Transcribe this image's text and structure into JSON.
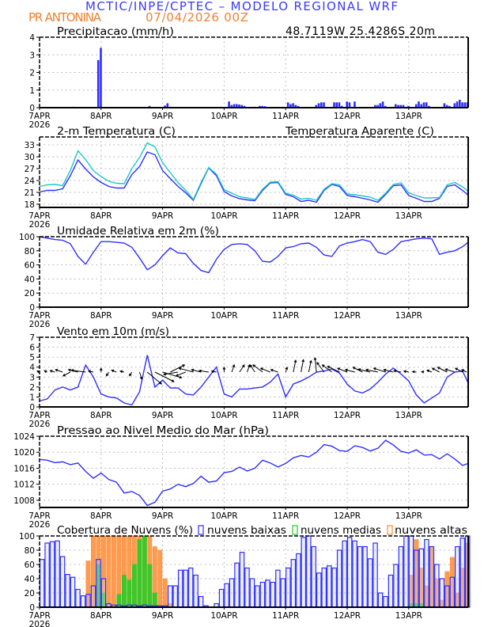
{
  "header": {
    "title": "MCTIC/INPE/CPTEC – MODELO REGIONAL WRF",
    "location": "PR ANTONINA",
    "run": "07/04/2026 00Z",
    "coords": "48.7119W 25.4286S 20m"
  },
  "colors": {
    "blue": "#2f2fff",
    "cyan": "#1cc8c8",
    "orange": "#ff8a30",
    "green": "#22cc22",
    "text_blue": "#3a3aff",
    "text_orange": "#f08030"
  },
  "x_axis": {
    "labels": [
      "7APR",
      "8APR",
      "9APR",
      "10APR",
      "11APR",
      "12APR",
      "13APR"
    ],
    "year": "2026",
    "hours_step_note_free": true
  },
  "chart_data": [
    {
      "type": "bar",
      "id": "precip",
      "title": "Precipitacao (mm/h)",
      "ylim": [
        0,
        4
      ],
      "yticks": [
        0,
        1,
        2,
        3,
        4
      ],
      "grid": true,
      "x_unit": "hours from 7APR 00Z",
      "points": [
        [
          23,
          2.7
        ],
        [
          24,
          3.4
        ],
        [
          13,
          0.05
        ],
        [
          21,
          0.03
        ],
        [
          43,
          0.1
        ],
        [
          49,
          0.12
        ],
        [
          50,
          0.25
        ],
        [
          51,
          0.05
        ],
        [
          74,
          0.35
        ],
        [
          75,
          0.15
        ],
        [
          76,
          0.2
        ],
        [
          77,
          0.2
        ],
        [
          78,
          0.18
        ],
        [
          79,
          0.15
        ],
        [
          80,
          0.1
        ],
        [
          84,
          0.05
        ],
        [
          86,
          0.1
        ],
        [
          87,
          0.1
        ],
        [
          88,
          0.08
        ],
        [
          97,
          0.3
        ],
        [
          98,
          0.2
        ],
        [
          99,
          0.25
        ],
        [
          100,
          0.15
        ],
        [
          101,
          0.1
        ],
        [
          108,
          0.15
        ],
        [
          109,
          0.25
        ],
        [
          110,
          0.3
        ],
        [
          111,
          0.3
        ],
        [
          112,
          0.05
        ],
        [
          115,
          0.3
        ],
        [
          116,
          0.3
        ],
        [
          117,
          0.3
        ],
        [
          118,
          0.1
        ],
        [
          120,
          0.35
        ],
        [
          121,
          0.3
        ],
        [
          123,
          0.35
        ],
        [
          131,
          0.15
        ],
        [
          132,
          0.15
        ],
        [
          133,
          0.25
        ],
        [
          134,
          0.35
        ],
        [
          135,
          0.1
        ],
        [
          139,
          0.2
        ],
        [
          140,
          0.15
        ],
        [
          141,
          0.15
        ],
        [
          142,
          0.15
        ],
        [
          144,
          0.1
        ],
        [
          147,
          0.2
        ],
        [
          148,
          0.35
        ],
        [
          149,
          0.2
        ],
        [
          150,
          0.3
        ],
        [
          151,
          0.3
        ],
        [
          152,
          0.1
        ],
        [
          158,
          0.25
        ],
        [
          159,
          0.15
        ],
        [
          160,
          0.1
        ],
        [
          162,
          0.25
        ],
        [
          163,
          0.35
        ],
        [
          164,
          0.45
        ],
        [
          165,
          0.3
        ],
        [
          166,
          0.3
        ],
        [
          167,
          0.3
        ]
      ]
    },
    {
      "type": "line",
      "id": "temp",
      "title": "2-m Temperatura (C)",
      "ylim": [
        17.2,
        35
      ],
      "yticks": [
        18,
        21,
        24,
        27,
        30,
        33
      ],
      "grid": true,
      "x_step_hours": 3,
      "series": [
        {
          "name": "2-m Temperatura (C)",
          "color": "#2f2fff",
          "values": [
            21.1,
            21.5,
            21.5,
            21.9,
            25.2,
            29.2,
            26.9,
            24.9,
            23.5,
            22.5,
            22.1,
            22.1,
            25.5,
            27.5,
            31.2,
            30.5,
            26.5,
            24.5,
            22.5,
            20.9,
            19.0,
            23.2,
            27.2,
            25.2,
            21.2,
            20.1,
            19.4,
            19.1,
            18.9,
            21.5,
            23.4,
            23.5,
            20.5,
            19.9,
            18.7,
            19.0,
            18.5,
            21.5,
            23.0,
            22.5,
            20.2,
            19.9,
            19.5,
            19.1,
            18.5,
            20.5,
            22.7,
            22.9,
            20.2,
            19.5,
            18.7,
            18.7,
            19.5,
            22.5,
            22.9,
            21.5,
            20.3
          ]
        },
        {
          "name": "Temperatura Aparente (C)",
          "color": "#1cc8c8",
          "values": [
            22.5,
            22.9,
            23.0,
            22.7,
            26.5,
            31.5,
            29.3,
            26.5,
            25.0,
            23.8,
            23.3,
            23.2,
            27.0,
            29.8,
            33.5,
            32.5,
            28.5,
            26.0,
            23.5,
            21.5,
            19.2,
            23.5,
            27.3,
            25.6,
            21.7,
            20.8,
            19.9,
            19.6,
            19.2,
            21.8,
            23.6,
            23.7,
            20.8,
            20.3,
            19.3,
            19.5,
            19.0,
            21.8,
            23.2,
            22.9,
            20.6,
            20.4,
            20.1,
            19.8,
            19.0,
            20.8,
            23.0,
            23.4,
            20.9,
            20.2,
            19.6,
            19.6,
            19.7,
            22.9,
            23.5,
            22.4,
            21.3
          ]
        }
      ]
    },
    {
      "type": "line",
      "id": "rh",
      "title": "Umidade Relativa em 2m (%)",
      "ylim": [
        0,
        100
      ],
      "yticks": [
        0,
        20,
        40,
        60,
        80,
        100
      ],
      "grid": true,
      "x_step_hours": 3,
      "series": [
        {
          "color": "#2f2fff",
          "values": [
            100,
            98,
            96,
            95,
            90,
            72,
            61,
            78,
            93,
            93,
            92,
            91,
            85,
            70,
            53,
            60,
            73,
            84,
            77,
            76,
            62,
            52,
            49,
            68,
            82,
            89,
            90,
            89,
            80,
            65,
            64,
            72,
            84,
            86,
            90,
            91,
            85,
            74,
            72,
            87,
            91,
            93,
            96,
            93,
            78,
            75,
            82,
            93,
            95,
            97,
            98,
            97,
            75,
            78,
            80,
            86,
            92
          ]
        }
      ]
    },
    {
      "type": "line",
      "id": "wind",
      "title": "Vento em 10m (m/s)",
      "ylim": [
        0,
        7
      ],
      "yticks": [
        0,
        1,
        2,
        3,
        4,
        5,
        6,
        7
      ],
      "grid": true,
      "x_step_hours": 3,
      "series": [
        {
          "color": "#2f2fff",
          "values": [
            0.6,
            0.8,
            1.7,
            2.0,
            1.7,
            2.0,
            4.2,
            3.0,
            1.3,
            1.0,
            0.9,
            0.4,
            0.2,
            1.5,
            5.2,
            2.0,
            2.7,
            1.9,
            1.9,
            1.3,
            1.2,
            2.0,
            3.0,
            4.0,
            1.3,
            1.0,
            1.8,
            1.8,
            1.9,
            2.0,
            2.5,
            3.3,
            1.0,
            2.3,
            2.6,
            3.0,
            3.5,
            3.6,
            3.8,
            3.4,
            2.3,
            1.6,
            1.4,
            1.8,
            2.5,
            3.3,
            3.9,
            3.3,
            2.6,
            1.2,
            0.4,
            0.9,
            1.4,
            3.0,
            3.5,
            3.6,
            2.4
          ]
        }
      ],
      "vectors": {
        "baseline": 3.5,
        "uv": [
          [
            -0.5,
            0.2
          ],
          [
            -0.6,
            0.3
          ],
          [
            -1,
            0.3
          ],
          [
            -1.5,
            0.5
          ],
          [
            -1.5,
            -0.8
          ],
          [
            -2,
            0.5
          ],
          [
            -3,
            0.4
          ],
          [
            -1,
            0.2
          ],
          [
            0,
            0.8
          ],
          [
            -0.5,
            -0.8
          ],
          [
            -1,
            0.4
          ],
          [
            -0.8,
            0.2
          ],
          [
            -0.5,
            -0.8
          ],
          [
            0.5,
            -1.5
          ],
          [
            3,
            -2.5
          ],
          [
            4,
            -2
          ],
          [
            4,
            -1.2
          ],
          [
            3,
            1.5
          ],
          [
            -3,
            -0.5
          ],
          [
            -2,
            -0.8
          ],
          [
            -3,
            0.8
          ],
          [
            -2,
            0.5
          ],
          [
            -2,
            0.3
          ],
          [
            -1,
            0.2
          ],
          [
            0,
            1
          ],
          [
            0.5,
            1.5
          ],
          [
            1,
            1.5
          ],
          [
            0.5,
            1.5
          ],
          [
            -1,
            1.5
          ],
          [
            -2,
            1.5
          ],
          [
            -2,
            0.8
          ],
          [
            -1.5,
            0.5
          ],
          [
            0.3,
            1
          ],
          [
            0.5,
            2.5
          ],
          [
            0.5,
            2.6
          ],
          [
            0.5,
            2.4
          ],
          [
            -0.3,
            3
          ],
          [
            -1.5,
            2
          ],
          [
            -2,
            1.5
          ],
          [
            -2.5,
            1.2
          ],
          [
            -2,
            0.8
          ],
          [
            -2,
            0.5
          ],
          [
            -2,
            1
          ],
          [
            -2.5,
            0.6
          ],
          [
            -2.5,
            0.5
          ],
          [
            -2.5,
            0.8
          ],
          [
            -2,
            0.5
          ],
          [
            -1.5,
            0.3
          ],
          [
            -1,
            0.2
          ],
          [
            -0.8,
            0.1
          ],
          [
            -0.5,
            0.1
          ],
          [
            -1,
            0.4
          ],
          [
            -1.5,
            0.8
          ],
          [
            -2,
            1
          ],
          [
            -2,
            0.6
          ],
          [
            -1.5,
            0.8
          ],
          [
            -1,
            0.5
          ]
        ]
      }
    },
    {
      "type": "line",
      "id": "pres",
      "title": "Pressao ao Nivel Medio do Mar (hPa)",
      "ylim": [
        1006.2,
        1024
      ],
      "yticks": [
        1008,
        1012,
        1016,
        1020,
        1024
      ],
      "grid": true,
      "x_step_hours": 3,
      "series": [
        {
          "color": "#2f2fff",
          "values": [
            1018.2,
            1018.0,
            1017.4,
            1017.6,
            1016.9,
            1017.3,
            1015.2,
            1013.5,
            1014.8,
            1013.2,
            1012.5,
            1009.8,
            1010.2,
            1009.2,
            1006.7,
            1007.5,
            1010.3,
            1010.8,
            1012.0,
            1011.4,
            1012.2,
            1014.0,
            1012.5,
            1012.8,
            1014.9,
            1015.2,
            1016.3,
            1015.3,
            1016.0,
            1018.0,
            1017.3,
            1016.3,
            1017.2,
            1018.6,
            1019.2,
            1018.8,
            1020.0,
            1021.9,
            1021.5,
            1020.4,
            1020.2,
            1021.6,
            1021.2,
            1020.3,
            1021.0,
            1023.0,
            1021.8,
            1020.2,
            1019.8,
            1020.6,
            1019.3,
            1019.4,
            1018.3,
            1019.6,
            1018.3,
            1016.7,
            1017.2
          ]
        }
      ]
    },
    {
      "type": "bar",
      "id": "cloud",
      "title": "Cobertura de Nuvens (%)",
      "ylim": [
        0,
        100
      ],
      "yticks": [
        0,
        20,
        40,
        60,
        80,
        100
      ],
      "grid": true,
      "x_step_hours": 2,
      "series": [
        {
          "name": "nuvens altas",
          "color": "#ff8a30",
          "values": [
            0,
            0,
            0,
            0,
            0,
            0,
            0,
            0,
            0,
            65,
            100,
            100,
            100,
            100,
            100,
            100,
            100,
            100,
            100,
            100,
            100,
            100,
            85,
            80,
            40,
            5,
            0,
            0,
            0,
            0,
            0,
            0,
            0,
            0,
            0,
            0,
            0,
            0,
            0,
            0,
            0,
            0,
            0,
            0,
            0,
            0,
            0,
            0,
            0,
            0,
            0,
            0,
            0,
            0,
            0,
            0,
            0,
            0,
            0,
            0,
            0,
            0,
            0,
            0,
            0,
            0,
            0,
            0,
            0,
            0,
            0,
            0,
            45,
            95,
            55,
            30,
            85,
            40,
            10,
            50,
            70,
            20,
            55,
            90
          ]
        },
        {
          "name": "nuvens medias",
          "color": "#22cc22",
          "values": [
            0,
            0,
            0,
            0,
            0,
            0,
            0,
            0,
            0,
            0,
            0,
            60,
            20,
            0,
            0,
            18,
            45,
            38,
            60,
            95,
            100,
            60,
            20,
            0,
            0,
            0,
            0,
            0,
            0,
            0,
            0,
            0,
            0,
            0,
            0,
            0,
            0,
            0,
            0,
            0,
            0,
            0,
            0,
            0,
            0,
            0,
            0,
            0,
            0,
            0,
            0,
            0,
            0,
            0,
            0,
            0,
            0,
            0,
            0,
            0,
            0,
            0,
            0,
            0,
            0,
            0,
            0,
            0,
            0,
            0,
            0,
            0,
            5,
            5,
            5,
            0,
            0,
            0,
            0,
            0,
            0,
            0,
            0,
            0
          ]
        },
        {
          "name": "nuvens baixas",
          "color": "#2f2fff",
          "values": [
            67,
            90,
            92,
            93,
            71,
            46,
            42,
            25,
            16,
            18,
            30,
            67,
            40,
            5,
            3,
            3,
            2,
            3,
            3,
            2,
            3,
            2,
            2,
            2,
            2,
            30,
            30,
            52,
            52,
            55,
            45,
            15,
            2,
            0,
            5,
            25,
            33,
            40,
            62,
            77,
            55,
            40,
            30,
            35,
            38,
            35,
            52,
            40,
            55,
            67,
            75,
            98,
            100,
            85,
            48,
            55,
            58,
            55,
            80,
            93,
            98,
            93,
            85,
            85,
            68,
            90,
            20,
            15,
            45,
            60,
            85,
            100,
            100,
            80,
            82,
            95,
            85,
            60,
            40,
            30,
            42,
            85,
            97,
            100
          ]
        }
      ]
    }
  ]
}
